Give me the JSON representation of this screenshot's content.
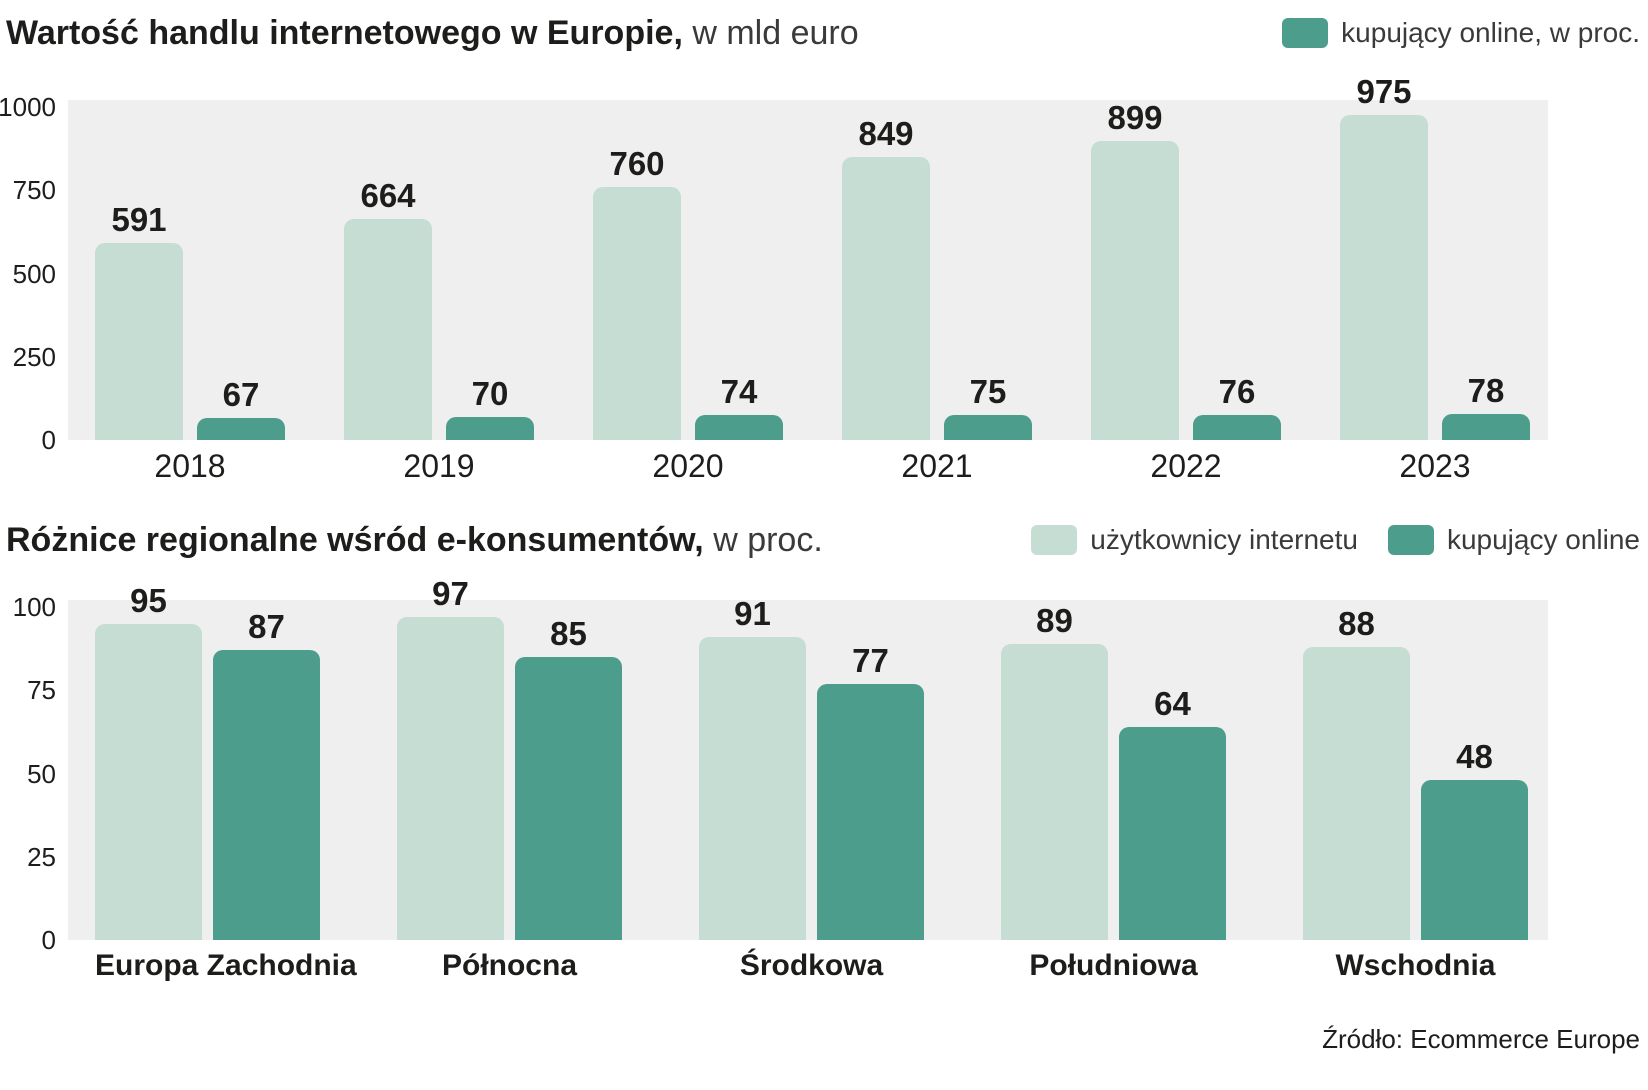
{
  "colors": {
    "light": "#c5ddd3",
    "dark": "#4d9d8d",
    "plot_bg": "#efefef",
    "text": "#1d1d1b"
  },
  "header1": {
    "title_bold": "Wartość handlu internetowego w Europie,",
    "title_light": "w mld euro"
  },
  "header2": {
    "title_bold": "Różnice regionalne wśród e-konsumentów,",
    "title_light": "w proc."
  },
  "source": "Źródło: Ecommerce Europe",
  "chart_data": [
    {
      "type": "bar",
      "title": "Wartość handlu internetowego w Europie, w mld euro",
      "categories": [
        "2018",
        "2019",
        "2020",
        "2021",
        "2022",
        "2023"
      ],
      "series": [
        {
          "name": "wartość handlu internetowego, w mld euro",
          "color": "light",
          "values": [
            591,
            664,
            760,
            849,
            899,
            975
          ]
        },
        {
          "name": "kupujący online, w proc.",
          "color": "dark",
          "values": [
            67,
            70,
            74,
            75,
            76,
            78
          ]
        }
      ],
      "ylim": [
        0,
        1000
      ],
      "yticks": [
        0,
        250,
        500,
        750,
        1000
      ],
      "grid": false,
      "legend_position": "top-right"
    },
    {
      "type": "bar",
      "title": "Różnice regionalne wśród e-konsumentów, w proc.",
      "categories": [
        "Europa Zachodnia",
        "Północna",
        "Środkowa",
        "Południowa",
        "Wschodnia"
      ],
      "series": [
        {
          "name": "użytkownicy internetu",
          "color": "light",
          "values": [
            95,
            97,
            91,
            89,
            88
          ]
        },
        {
          "name": "kupujący online",
          "color": "dark",
          "values": [
            87,
            85,
            77,
            64,
            48
          ]
        }
      ],
      "ylim": [
        0,
        100
      ],
      "yticks": [
        0,
        25,
        50,
        75,
        100
      ],
      "grid": false,
      "legend_position": "top-right"
    }
  ]
}
